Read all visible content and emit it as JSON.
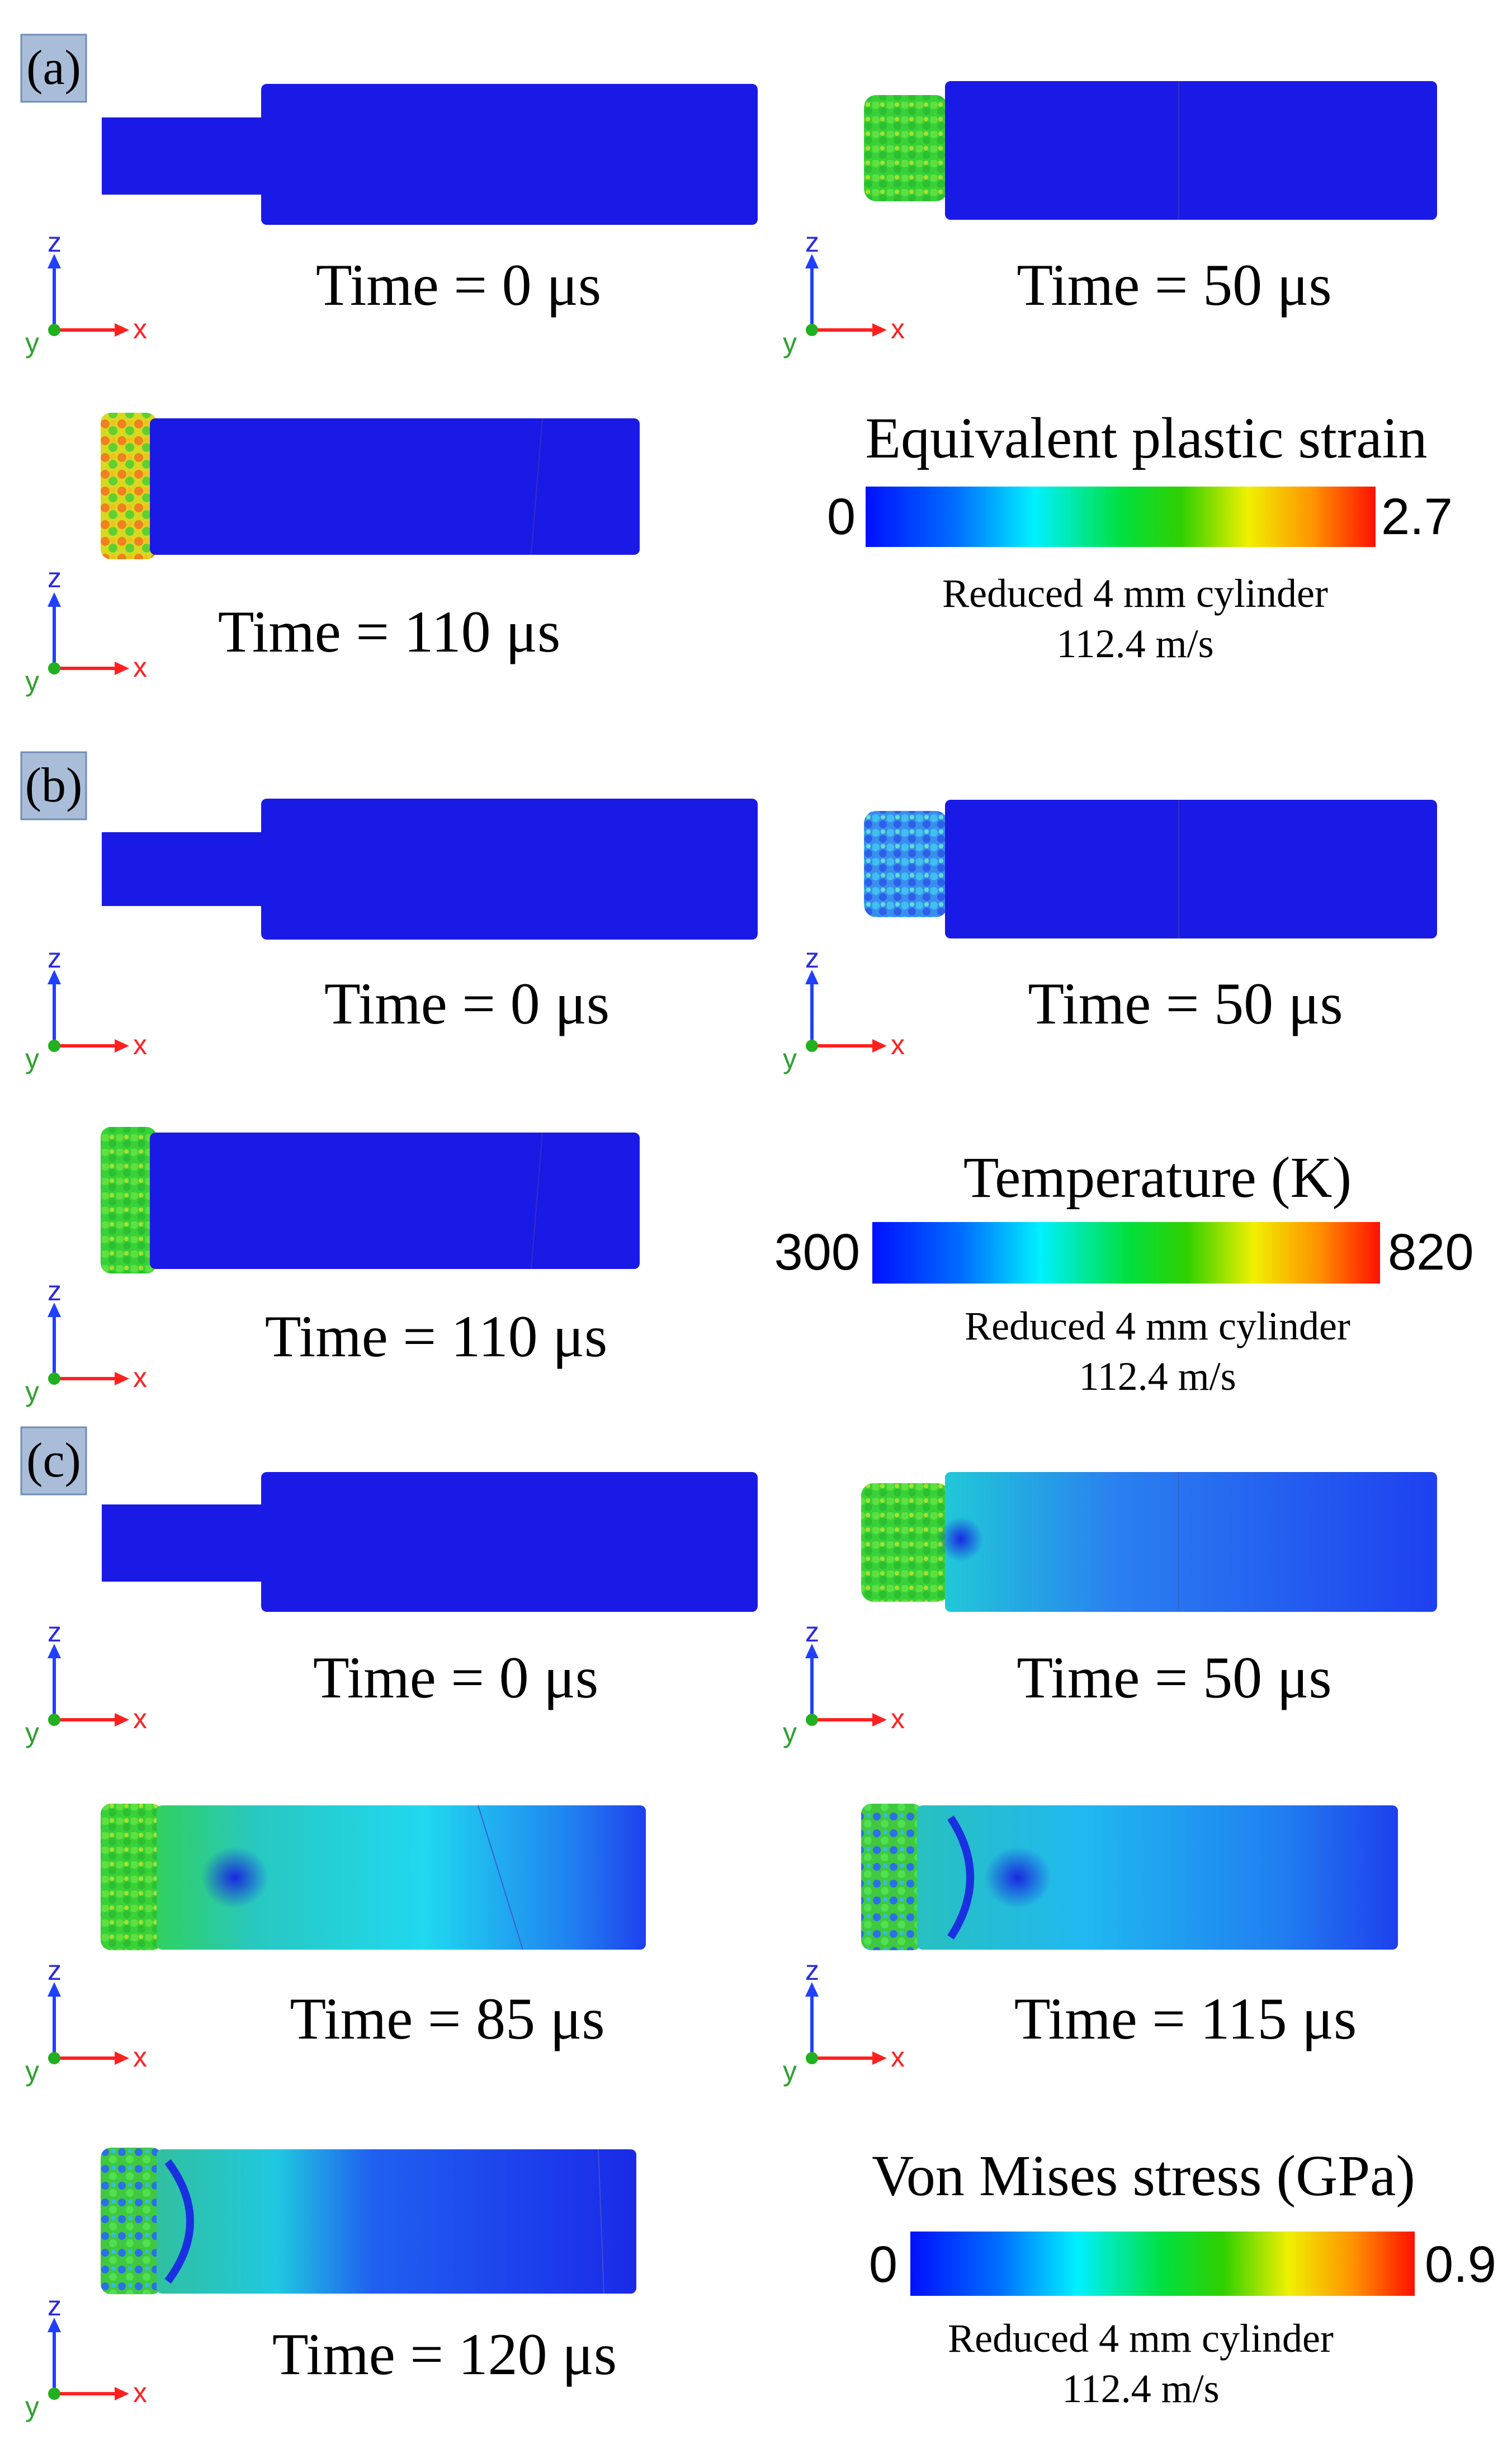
{
  "panels": [
    {
      "label": "(a)",
      "frames": [
        "Time = 0 μs",
        "Time = 50 μs",
        "Time = 110 μs"
      ],
      "legend": {
        "title": "Equivalent plastic strain",
        "min": "0",
        "max": "2.7",
        "caption_line1": "Reduced 4 mm cylinder",
        "caption_line2": "112.4 m/s"
      }
    },
    {
      "label": "(b)",
      "frames": [
        "Time = 0 μs",
        "Time = 50 μs",
        "Time = 110 μs"
      ],
      "legend": {
        "title": "Temperature (K)",
        "min": "300",
        "max": "820",
        "caption_line1": "Reduced 4 mm cylinder",
        "caption_line2": "112.4 m/s"
      }
    },
    {
      "label": "(c)",
      "frames": [
        "Time = 0 μs",
        "Time = 50 μs",
        "Time = 85 μs",
        "Time = 115 μs",
        "Time = 120 μs"
      ],
      "legend": {
        "title": "Von Mises stress (GPa)",
        "min": "0",
        "max": "0.9",
        "caption_line1": "Reduced 4 mm cylinder",
        "caption_line2": "112.4 m/s"
      }
    }
  ],
  "axes": {
    "x": "x",
    "y": "y",
    "z": "z"
  },
  "colors": {
    "label_box": "#a9bdd9",
    "label_box_border": "#6f8db8",
    "bar_blue": "#1a1ae6",
    "axis_x": "#ff2020",
    "axis_z": "#2040ff",
    "axis_origin": "#20b020",
    "colormap": [
      "#0000ff",
      "#0080ff",
      "#00ffff",
      "#00ff40",
      "#80ff00",
      "#ffff00",
      "#ff8000",
      "#ff0000"
    ]
  }
}
